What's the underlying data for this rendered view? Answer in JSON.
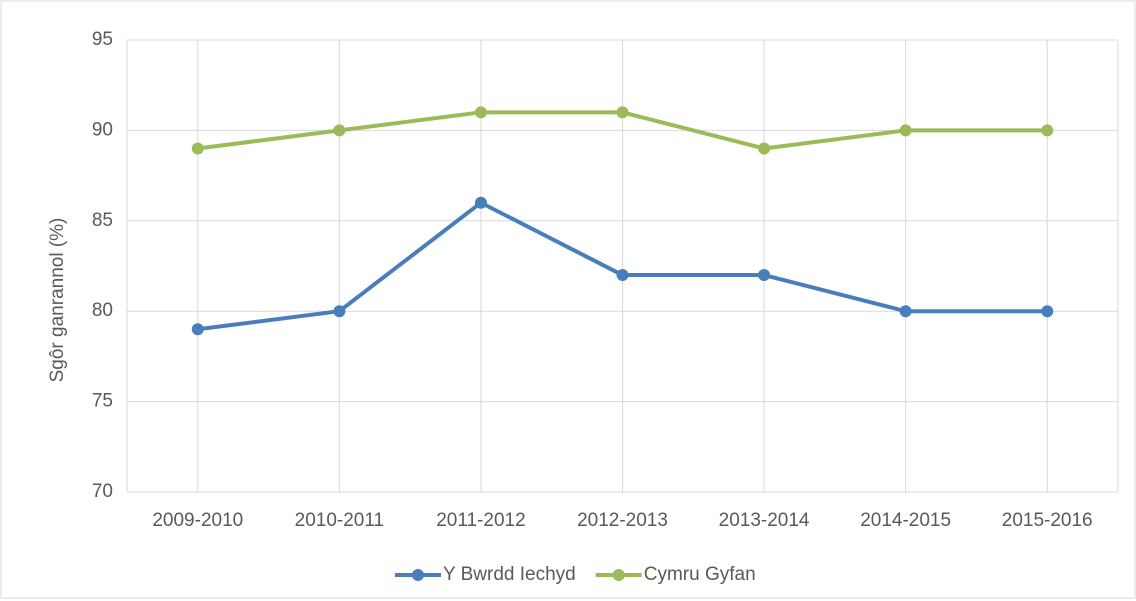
{
  "chart_data": {
    "type": "line",
    "y_label": "Sgôr ganrannol (%)",
    "categories": [
      "2009-2010",
      "2010-2011",
      "2011-2012",
      "2012-2013",
      "2013-2014",
      "2014-2015",
      "2015-2016"
    ],
    "series": [
      {
        "name": "Y Bwrdd Iechyd",
        "color": "#4a7ebb",
        "values": [
          79,
          80,
          86,
          82,
          82,
          80,
          80
        ]
      },
      {
        "name": "Cymru Gyfan",
        "color": "#9bbb59",
        "values": [
          89,
          90,
          91,
          91,
          89,
          90,
          90
        ]
      }
    ],
    "ylim": [
      70,
      95
    ],
    "yticks": [
      70,
      75,
      80,
      85,
      90,
      95
    ],
    "grid": true,
    "legend": "bottom"
  }
}
